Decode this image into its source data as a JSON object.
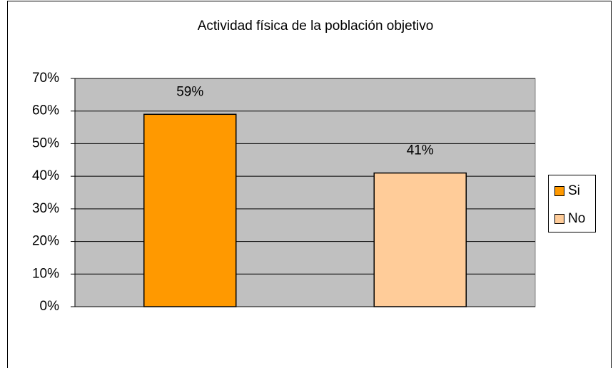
{
  "chart_data": {
    "type": "bar",
    "title": "Actividad física de la población objetivo",
    "categories": [
      "Si",
      "No"
    ],
    "values": [
      59,
      41
    ],
    "value_labels": [
      "59%",
      "41%"
    ],
    "colors": [
      "#ff9900",
      "#ffcc99"
    ],
    "ylim": [
      0,
      70
    ],
    "yticks": [
      {
        "value": 0,
        "label": "0%"
      },
      {
        "value": 10,
        "label": "10%"
      },
      {
        "value": 20,
        "label": "20%"
      },
      {
        "value": 30,
        "label": "30%"
      },
      {
        "value": 40,
        "label": "40%"
      },
      {
        "value": 50,
        "label": "50%"
      },
      {
        "value": 60,
        "label": "60%"
      },
      {
        "value": 70,
        "label": "70%"
      }
    ],
    "grid": true,
    "legend": "right"
  }
}
